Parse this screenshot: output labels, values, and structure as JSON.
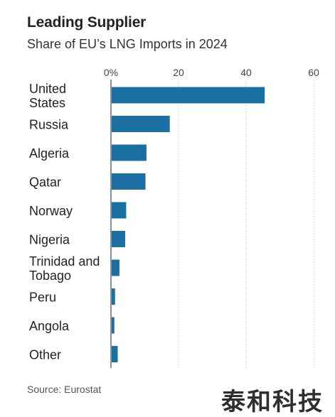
{
  "header": {
    "title": "Leading Supplier",
    "subtitle": "Share of EU’s LNG Imports in 2024"
  },
  "footer": {
    "source": "Source: Eurostat"
  },
  "watermark": "泰和科技",
  "colors": {
    "bar": "#1a6fa3",
    "grid": "#c8c8c8",
    "axis_text": "#444444"
  },
  "chart_data": {
    "type": "bar",
    "orientation": "horizontal",
    "title": "Leading Supplier",
    "subtitle": "Share of EU’s LNG Imports in 2024",
    "categories": [
      [
        "United",
        "States"
      ],
      [
        "Russia"
      ],
      [
        "Algeria"
      ],
      [
        "Qatar"
      ],
      [
        "Norway"
      ],
      [
        "Nigeria"
      ],
      [
        "Trinidad and",
        "Tobago"
      ],
      [
        "Peru"
      ],
      [
        "Angola"
      ],
      [
        "Other"
      ]
    ],
    "values": [
      45.3,
      17.2,
      10.3,
      10.0,
      4.3,
      4.0,
      2.3,
      1.0,
      0.8,
      1.8
    ],
    "xlim": [
      0,
      60
    ],
    "ticks": [
      0,
      20,
      40,
      60
    ],
    "tick_labels": [
      "0%",
      "20",
      "40",
      "60"
    ],
    "grid": true,
    "xlabel": "",
    "ylabel": ""
  }
}
